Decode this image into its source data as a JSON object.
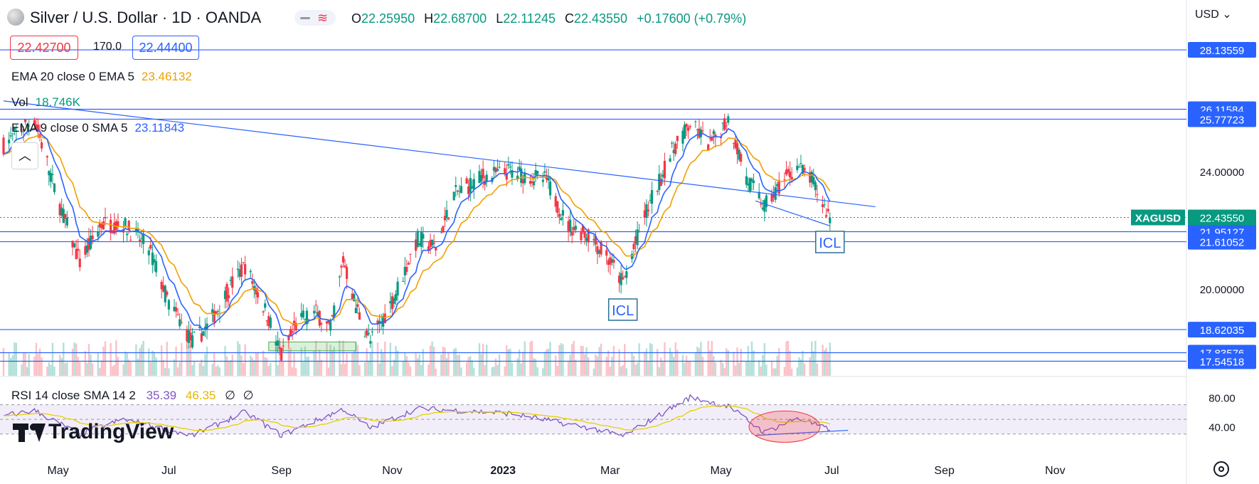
{
  "header": {
    "symbol_title": "Silver / U.S. Dollar · 1D · OANDA",
    "ohlc": {
      "o_label": "O",
      "o_value": "22.25950",
      "h_label": "H",
      "h_value": "22.68700",
      "l_label": "L",
      "l_value": "22.11245",
      "c_label": "C",
      "c_value": "22.43550",
      "change": "+0.17600 (+0.79%)"
    },
    "currency": "USD",
    "bid": "22.42700",
    "spread": "170.0",
    "ask": "22.44400"
  },
  "legends": {
    "ema20_label": "EMA 20 close 0 EMA 5",
    "ema20_value": "23.46132",
    "vol_label": "Vol",
    "vol_value": "18.746K",
    "ema9_label": "EMA 9 close 0 SMA 5",
    "ema9_value": "23.11843",
    "rsi_label": "RSI 14 close SMA 14 2",
    "rsi_value": "35.39",
    "rsi_sma_value": "46.35",
    "rsi_extra1": "∅",
    "rsi_extra2": "∅"
  },
  "watermark": "TradingView",
  "colors": {
    "up": "#089981",
    "down": "#f23645",
    "ema20": "#f0a000",
    "ema9": "#2962ff",
    "hline": "#2962ff",
    "rsi": "#7e57c2",
    "rsi_sma": "#e6d000",
    "xag_label": "#089981"
  },
  "chart_data": {
    "type": "candlestick",
    "title": "Silver / U.S. Dollar · 1D · OANDA",
    "symbol": "XAGUSD",
    "last_price": 22.4355,
    "x_tick_labels": [
      "May",
      "Jul",
      "Sep",
      "Nov",
      "2023",
      "Mar",
      "May",
      "Jul",
      "Sep",
      "Nov"
    ],
    "y_tick_labels": [
      "24.00000",
      "20.00000"
    ],
    "y_range": [
      17.0,
      28.5
    ],
    "price_path": [
      {
        "date": "2022-04-01",
        "price": 24.9
      },
      {
        "date": "2022-04-18",
        "price": 25.8
      },
      {
        "date": "2022-05-01",
        "price": 23.0
      },
      {
        "date": "2022-05-13",
        "price": 20.9
      },
      {
        "date": "2022-05-25",
        "price": 22.2
      },
      {
        "date": "2022-06-06",
        "price": 22.2
      },
      {
        "date": "2022-06-20",
        "price": 21.4
      },
      {
        "date": "2022-07-01",
        "price": 19.5
      },
      {
        "date": "2022-07-14",
        "price": 18.2
      },
      {
        "date": "2022-07-22",
        "price": 18.7
      },
      {
        "date": "2022-08-05",
        "price": 20.2
      },
      {
        "date": "2022-08-12",
        "price": 20.8
      },
      {
        "date": "2022-08-25",
        "price": 19.0
      },
      {
        "date": "2022-09-01",
        "price": 17.7
      },
      {
        "date": "2022-09-10",
        "price": 18.9
      },
      {
        "date": "2022-09-20",
        "price": 19.2
      },
      {
        "date": "2022-09-28",
        "price": 18.6
      },
      {
        "date": "2022-10-05",
        "price": 21.0
      },
      {
        "date": "2022-10-12",
        "price": 19.4
      },
      {
        "date": "2022-10-20",
        "price": 18.2
      },
      {
        "date": "2022-11-01",
        "price": 19.6
      },
      {
        "date": "2022-11-15",
        "price": 21.7
      },
      {
        "date": "2022-11-25",
        "price": 21.4
      },
      {
        "date": "2022-12-05",
        "price": 23.2
      },
      {
        "date": "2022-12-20",
        "price": 23.8
      },
      {
        "date": "2023-01-05",
        "price": 24.0
      },
      {
        "date": "2023-01-25",
        "price": 23.7
      },
      {
        "date": "2023-02-05",
        "price": 22.2
      },
      {
        "date": "2023-02-18",
        "price": 21.8
      },
      {
        "date": "2023-03-01",
        "price": 20.9
      },
      {
        "date": "2023-03-08",
        "price": 20.2
      },
      {
        "date": "2023-03-20",
        "price": 22.5
      },
      {
        "date": "2023-04-05",
        "price": 24.8
      },
      {
        "date": "2023-04-14",
        "price": 25.6
      },
      {
        "date": "2023-04-25",
        "price": 24.9
      },
      {
        "date": "2023-05-05",
        "price": 25.8
      },
      {
        "date": "2023-05-15",
        "price": 23.8
      },
      {
        "date": "2023-05-25",
        "price": 22.8
      },
      {
        "date": "2023-06-05",
        "price": 23.7
      },
      {
        "date": "2023-06-12",
        "price": 24.2
      },
      {
        "date": "2023-06-20",
        "price": 23.7
      },
      {
        "date": "2023-06-26",
        "price": 22.9
      },
      {
        "date": "2023-06-30",
        "price": 22.4355
      }
    ],
    "horizontal_levels": [
      28.13559,
      26.11584,
      25.77723,
      21.95127,
      21.61052,
      18.62035,
      17.83576,
      17.54518
    ],
    "level_labels": [
      "28.13559",
      "26.11584",
      "25.77723",
      "21.95127",
      "21.61052",
      "18.62035",
      "17.83576",
      "17.54518"
    ],
    "trendlines": [
      {
        "from": {
          "date": "2022-04-01",
          "price": 26.4
        },
        "to": {
          "date": "2023-07-25",
          "price": 22.8
        }
      },
      {
        "from": {
          "date": "2023-05-20",
          "price": 23.0
        },
        "to": {
          "date": "2023-06-30",
          "price": 22.15
        }
      }
    ],
    "annotations": [
      {
        "text": "ICL",
        "date": "2023-03-08",
        "price": 19.3
      },
      {
        "text": "ICL",
        "date": "2023-06-30",
        "price": 21.6
      }
    ],
    "highlight_box": {
      "from_date": "2022-08-25",
      "to_date": "2022-10-12",
      "price_low": 17.9,
      "price_high": 18.2
    },
    "rsi": {
      "y_tick_labels": [
        "80.00",
        "40.00"
      ],
      "levels": [
        70,
        50,
        30
      ],
      "range": [
        20,
        90
      ],
      "path": [
        {
          "date": "2022-04-01",
          "value": 55
        },
        {
          "date": "2022-04-18",
          "value": 62
        },
        {
          "date": "2022-05-13",
          "value": 30
        },
        {
          "date": "2022-06-06",
          "value": 50
        },
        {
          "date": "2022-07-14",
          "value": 28
        },
        {
          "date": "2022-08-12",
          "value": 60
        },
        {
          "date": "2022-09-01",
          "value": 28
        },
        {
          "date": "2022-10-05",
          "value": 64
        },
        {
          "date": "2022-10-20",
          "value": 38
        },
        {
          "date": "2022-11-15",
          "value": 65
        },
        {
          "date": "2023-01-05",
          "value": 58
        },
        {
          "date": "2023-02-18",
          "value": 38
        },
        {
          "date": "2023-03-08",
          "value": 27
        },
        {
          "date": "2023-04-14",
          "value": 80
        },
        {
          "date": "2023-05-05",
          "value": 68
        },
        {
          "date": "2023-05-25",
          "value": 32
        },
        {
          "date": "2023-06-12",
          "value": 52
        },
        {
          "date": "2023-06-30",
          "value": 35.39
        }
      ],
      "rsi_trendline": {
        "from": {
          "date": "2023-05-20",
          "value": 28
        },
        "to": {
          "date": "2023-07-10",
          "value": 35
        }
      },
      "highlight_ellipse": {
        "center_date": "2023-06-05",
        "center_value": 40
      }
    }
  }
}
